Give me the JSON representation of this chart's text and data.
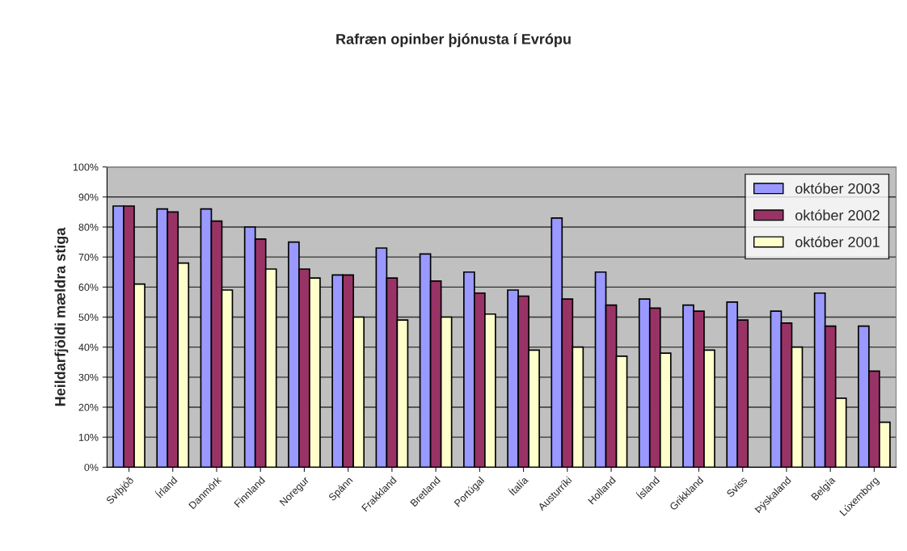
{
  "chart_data": {
    "type": "bar",
    "title": "Rafræn opinber þjónusta í Evrópu",
    "ylabel": "Heildarfjöldi mældra stiga",
    "categories": [
      "Svíþjóð",
      "Írland",
      "Danmörk",
      "Finnland",
      "Noregur",
      "Spánn",
      "Frakkland",
      "Bretland",
      "Portúgal",
      "Ítalía",
      "Austurríki",
      "Holland",
      "Ísland",
      "Grikkland",
      "Sviss",
      "Þýskaland",
      "Belgía",
      "Lúxemborg"
    ],
    "series": [
      {
        "name": "október 2003",
        "color": "#9999ff",
        "values": [
          87,
          86,
          86,
          80,
          75,
          64,
          73,
          71,
          65,
          59,
          83,
          65,
          56,
          54,
          55,
          52,
          58,
          47
        ]
      },
      {
        "name": "október 2002",
        "color": "#993366",
        "values": [
          87,
          85,
          82,
          76,
          66,
          64,
          63,
          62,
          58,
          57,
          56,
          54,
          53,
          52,
          49,
          48,
          47,
          32
        ]
      },
      {
        "name": "október 2001",
        "color": "#ffffcc",
        "values": [
          61,
          68,
          59,
          66,
          63,
          50,
          49,
          50,
          51,
          39,
          40,
          37,
          38,
          39,
          null,
          40,
          23,
          15
        ]
      }
    ],
    "ylim": [
      0,
      100
    ],
    "yticks": [
      {
        "value": 0,
        "label": "0%"
      },
      {
        "value": 10,
        "label": "10%"
      },
      {
        "value": 20,
        "label": "20%"
      },
      {
        "value": 30,
        "label": "30%"
      },
      {
        "value": 40,
        "label": "40%"
      },
      {
        "value": 50,
        "label": "50%"
      },
      {
        "value": 60,
        "label": "60%"
      },
      {
        "value": 70,
        "label": "70%"
      },
      {
        "value": 80,
        "label": "80%"
      },
      {
        "value": 90,
        "label": "90%"
      },
      {
        "value": 100,
        "label": "100%"
      }
    ],
    "grid": "y",
    "legend": "top right"
  }
}
